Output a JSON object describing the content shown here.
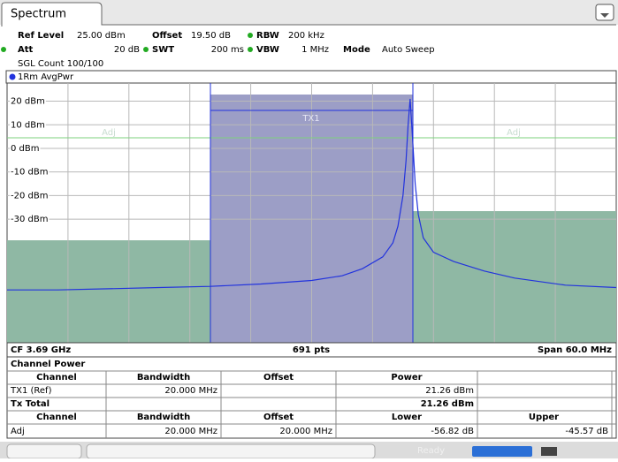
{
  "tab": "Spectrum",
  "header": {
    "ref_level": {
      "label": "Ref Level",
      "value": "25.00 dBm"
    },
    "offset": {
      "label": "Offset",
      "value": "19.50 dB"
    },
    "rbw": {
      "label": "RBW",
      "value": "200 kHz"
    },
    "att": {
      "label": "Att",
      "value": "20 dB"
    },
    "swt": {
      "label": "SWT",
      "value": "200 ms"
    },
    "vbw": {
      "label": "VBW",
      "value": "1 MHz"
    },
    "mode": {
      "label": "Mode",
      "value": "Auto Sweep"
    },
    "count": "SGL Count 100/100",
    "trace": "1Rm AvgPwr"
  },
  "chart_data": {
    "type": "line",
    "channel_label": "TX1",
    "adjacent_label": "Adj",
    "x": [
      3.66,
      3.665,
      3.67,
      3.675,
      3.68,
      3.685,
      3.69,
      3.693,
      3.695,
      3.697,
      3.698,
      3.6985,
      3.699,
      3.6993,
      3.6995,
      3.6997,
      3.7,
      3.7002,
      3.7005,
      3.701,
      3.702,
      3.704,
      3.707,
      3.71,
      3.715,
      3.72
    ],
    "series": [
      {
        "name": "1Rm AvgPwr",
        "color": "#2233dd",
        "values": [
          -60,
          -60,
          -59.5,
          -59,
          -58.5,
          -57.5,
          -56,
          -54,
          -51,
          -46,
          -40,
          -33,
          -20,
          -5,
          10,
          21,
          0,
          -15,
          -28,
          -38,
          -44,
          -48,
          -52,
          -55,
          -58,
          -59
        ]
      }
    ],
    "xlim": [
      3.66,
      3.72
    ],
    "ylim": [
      -82.4,
      27.7
    ],
    "yticks": [
      {
        "value": 20,
        "label": "20 dBm"
      },
      {
        "value": 10,
        "label": "10 dBm"
      },
      {
        "value": 0,
        "label": "0 dBm"
      },
      {
        "value": -10,
        "label": "-10 dBm"
      },
      {
        "value": -20,
        "label": "-20 dBm"
      },
      {
        "value": -30,
        "label": "-30 dBm"
      }
    ],
    "grid": true,
    "center": "CF 3.69 GHz",
    "points": "691 pts",
    "span": "Span 60.0 MHz"
  },
  "table": {
    "title": "Channel Power",
    "header1": [
      "Channel",
      "Bandwidth",
      "Offset",
      "Power"
    ],
    "tx1": {
      "channel": "TX1 (Ref)",
      "bandwidth": "20.000 MHz",
      "power": "21.26 dBm"
    },
    "total": {
      "channel": "Tx Total",
      "power": "21.26 dBm"
    },
    "header2": [
      "Channel",
      "Bandwidth",
      "Offset",
      "Lower",
      "Upper"
    ],
    "adj": {
      "channel": "Adj",
      "bandwidth": "20.000 MHz",
      "offset": "20.000 MHz",
      "lower": "-56.82 dB",
      "upper": "-45.57 dB"
    }
  },
  "status": "Ready"
}
